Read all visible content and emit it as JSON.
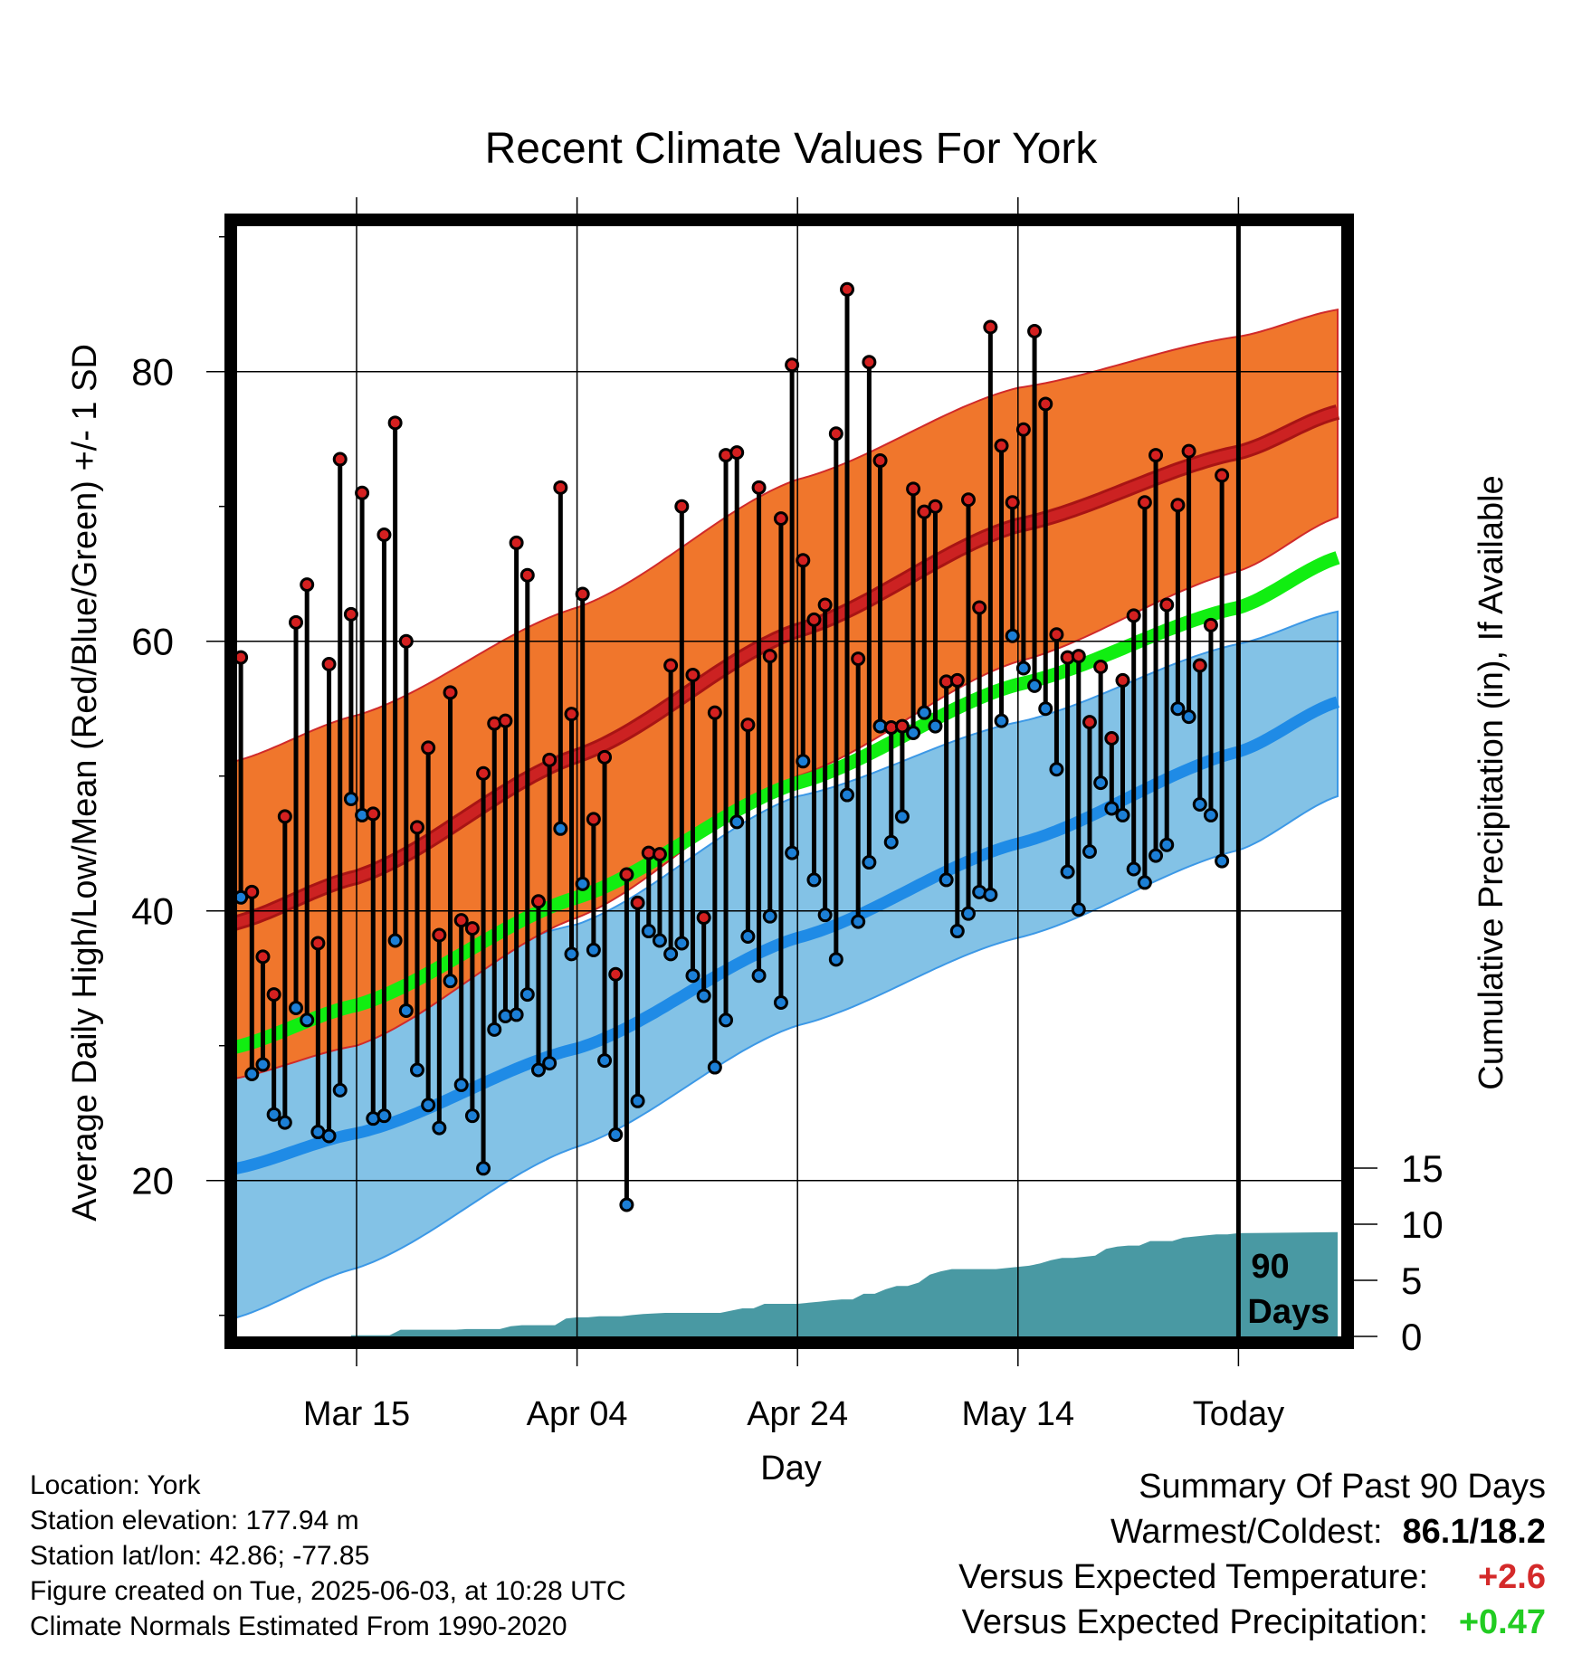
{
  "chart_data": {
    "type": "line",
    "title": "Recent Climate Values For York",
    "xlabel": "Day",
    "ylabel_left": "Average Daily High/Low/Mean (Red/Blue/Green) +/- 1 SD",
    "ylabel_right": "Cumulative Precipitation (in), If Available",
    "ylim": [
      8,
      91
    ],
    "y_ticks": [
      20,
      40,
      60,
      80
    ],
    "precip_ticks": [
      0,
      5,
      10,
      15
    ],
    "precip_range": [
      0,
      55.5
    ],
    "x_range": [
      -0.5,
      100
    ],
    "x_ticks": [
      {
        "day": 11,
        "label": "Mar 15"
      },
      {
        "day": 31,
        "label": "Apr 04"
      },
      {
        "day": 51,
        "label": "Apr 24"
      },
      {
        "day": 71,
        "label": "May 14"
      },
      {
        "day": 91,
        "label": "Today"
      }
    ],
    "today_marker_label_line1": "90",
    "today_marker_label_line2": "Days",
    "grid": true,
    "colors": {
      "high_band": "#f0762c",
      "high_mean": "#cc2222",
      "low_band": "#83c2e6",
      "low_mean": "#1f8be6",
      "mean_line": "#11ee11",
      "precip": "#4999a3",
      "high_dot": "#d42020",
      "low_dot": "#1c7fd6"
    },
    "normals_x": [
      -0.5,
      11,
      31,
      51,
      71,
      91,
      100
    ],
    "normal_high": [
      39.0,
      42.5,
      51.5,
      60.8,
      68.6,
      74.0,
      77.0
    ],
    "normal_high_upper": [
      51.0,
      54.5,
      62.5,
      72.0,
      78.8,
      82.6,
      84.6
    ],
    "normal_high_lower": [
      27.5,
      30.0,
      39.5,
      50.0,
      58.5,
      65.2,
      69.2
    ],
    "normal_low": [
      20.8,
      23.5,
      29.8,
      38.0,
      45.0,
      51.8,
      55.5
    ],
    "normal_low_upper": [
      32.0,
      33.5,
      39.0,
      48.5,
      54.0,
      59.8,
      62.2
    ],
    "normal_low_lower": [
      9.7,
      13.5,
      22.5,
      31.5,
      38.0,
      44.5,
      48.5
    ],
    "normal_mean": [
      29.8,
      33.0,
      41.0,
      49.5,
      56.8,
      62.5,
      66.2
    ],
    "daily_high": [
      58.8,
      41.4,
      36.6,
      33.8,
      47.0,
      61.4,
      64.2,
      37.6,
      58.3,
      73.5,
      62.0,
      71.0,
      47.2,
      67.9,
      76.2,
      60.0,
      46.2,
      52.1,
      38.2,
      56.2,
      39.3,
      38.7,
      50.2,
      53.9,
      54.1,
      67.3,
      64.9,
      40.7,
      51.2,
      71.4,
      54.6,
      63.5,
      46.8,
      51.4,
      35.3,
      42.7,
      40.6,
      44.3,
      44.2,
      58.2,
      70.0,
      57.5,
      39.5,
      54.7,
      73.8,
      74.0,
      53.8,
      71.4,
      58.9,
      69.1,
      80.5,
      66.0,
      61.6,
      62.7,
      75.4,
      86.1,
      58.7,
      80.7,
      73.4,
      53.6,
      53.7,
      71.3,
      69.6,
      70.0,
      57.0,
      57.1,
      70.5,
      62.5,
      83.3,
      74.5,
      70.3,
      75.7,
      83.0,
      77.6,
      60.5,
      58.8,
      58.9,
      54.0,
      58.1,
      52.8,
      57.1,
      61.9,
      70.3,
      73.8,
      62.7,
      70.1,
      74.1,
      58.2,
      61.2,
      72.3
    ],
    "daily_low": [
      41.0,
      27.9,
      28.6,
      24.9,
      24.3,
      32.8,
      31.9,
      23.6,
      23.3,
      26.7,
      48.3,
      47.1,
      24.6,
      24.8,
      37.8,
      32.6,
      28.2,
      25.6,
      23.9,
      34.8,
      27.1,
      24.8,
      20.9,
      31.2,
      32.2,
      32.3,
      33.8,
      28.2,
      28.7,
      46.1,
      36.8,
      42.0,
      37.1,
      28.9,
      23.4,
      18.2,
      25.9,
      38.5,
      37.8,
      36.8,
      37.6,
      35.2,
      33.7,
      28.4,
      31.9,
      46.6,
      38.1,
      35.2,
      39.6,
      33.2,
      44.3,
      51.1,
      42.3,
      39.7,
      36.4,
      48.6,
      39.2,
      43.6,
      53.7,
      45.1,
      47.0,
      53.2,
      54.7,
      53.7,
      42.3,
      38.5,
      39.8,
      41.4,
      41.2,
      54.1,
      60.4,
      58.0,
      56.7,
      55.0,
      50.5,
      42.9,
      40.1,
      44.4,
      49.5,
      47.6,
      47.1,
      43.1,
      42.1,
      44.1,
      44.9,
      55.0,
      54.4,
      47.9,
      47.1,
      43.7
    ],
    "precip_x": [
      10.5,
      12,
      13,
      14,
      15,
      16,
      17,
      18,
      19,
      20,
      21,
      22,
      23,
      24,
      25,
      26,
      27,
      28,
      29,
      30,
      31,
      32,
      33,
      34,
      35,
      36,
      37,
      38,
      39,
      40,
      41,
      42,
      43,
      44,
      45,
      46,
      47,
      48,
      49,
      50,
      51,
      52,
      53,
      54,
      55,
      56,
      57,
      58,
      59,
      60,
      61,
      62,
      63,
      64,
      65,
      66,
      67,
      68,
      69,
      70,
      71,
      72,
      73,
      74,
      75,
      76,
      77,
      78,
      79,
      80,
      81,
      82,
      83,
      84,
      85,
      86,
      87,
      88,
      89,
      90,
      91,
      100
    ],
    "precip_y": [
      0.1,
      0.1,
      0.1,
      0.1,
      0.6,
      0.6,
      0.6,
      0.6,
      0.6,
      0.6,
      0.65,
      0.65,
      0.65,
      0.65,
      0.9,
      1.0,
      1.0,
      1.0,
      1.0,
      1.6,
      1.7,
      1.7,
      1.8,
      1.8,
      1.8,
      1.9,
      2.0,
      2.05,
      2.1,
      2.1,
      2.1,
      2.1,
      2.1,
      2.1,
      2.3,
      2.5,
      2.5,
      2.9,
      2.9,
      2.9,
      2.9,
      3.0,
      3.1,
      3.2,
      3.3,
      3.3,
      3.8,
      3.8,
      4.2,
      4.5,
      4.5,
      4.8,
      5.5,
      5.8,
      6.0,
      6.0,
      6.0,
      6.0,
      6.0,
      6.1,
      6.2,
      6.3,
      6.5,
      6.8,
      7.0,
      7.0,
      7.1,
      7.2,
      7.8,
      8.0,
      8.1,
      8.1,
      8.5,
      8.5,
      8.5,
      8.8,
      8.9,
      9.0,
      9.1,
      9.1,
      9.2,
      9.3
    ]
  },
  "footer": {
    "location": "Location: York",
    "elevation": "Station elevation: 177.94 m",
    "latlon": "Station lat/lon: 42.86; -77.85",
    "created": "Figure created on Tue, 2025-06-03, at 10:28 UTC",
    "normals": "Climate Normals Estimated From 1990-2020"
  },
  "summary": {
    "title": "Summary Of Past 90 Days",
    "warmest_coldest_label": "Warmest/Coldest:",
    "warmest_coldest_value": "86.1/18.2",
    "temp_label": "Versus Expected Temperature:",
    "temp_value": "+2.6",
    "temp_color": "#d42a2a",
    "precip_label": "Versus Expected Precipitation:",
    "precip_value": "+0.47",
    "precip_color": "#22cc22"
  }
}
